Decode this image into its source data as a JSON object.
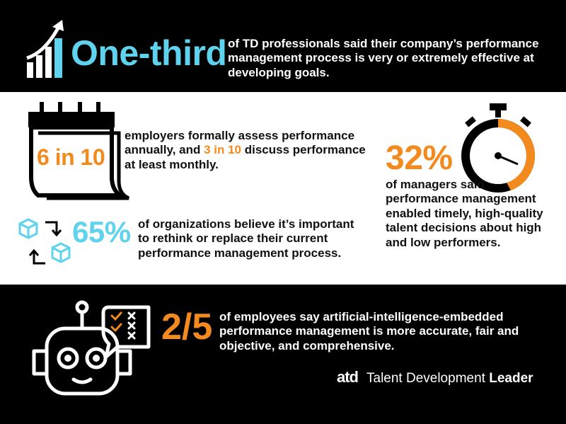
{
  "top": {
    "headline": "One-third",
    "description": "of TD professionals said their company’s performance management process is very or extremely effective at developing goals."
  },
  "calendar": {
    "stat": "6 in 10",
    "desc_part1": "employers formally assess performance annually, and ",
    "desc_highlight": "3 in 10",
    "desc_part2": " discuss performance at least monthly."
  },
  "organizations": {
    "stat": "65%",
    "description": "of organizations believe it’s important to rethink or replace their current performance management process."
  },
  "managers": {
    "stat": "32%",
    "description": "of managers said performance management enabled timely, high-quality talent decisions about high and low performers."
  },
  "employees": {
    "stat": "2/5",
    "description": "of employees say artificial-intelligence-embedded performance management is more accurate, fair and objective, and comprehensive."
  },
  "brand": {
    "logo": "atd",
    "name_regular": "Talent Development",
    "name_bold": "Leader"
  },
  "colors": {
    "accent_blue": "#5fd3ee",
    "accent_orange": "#f28a1e",
    "dark": "#000000",
    "light": "#ffffff"
  },
  "icons": {
    "top": "bar-chart-arrow-icon",
    "calendar": "calendar-icon",
    "cubes": "cubes-exchange-icon",
    "stopwatch": "stopwatch-icon",
    "robot": "robot-icon"
  }
}
